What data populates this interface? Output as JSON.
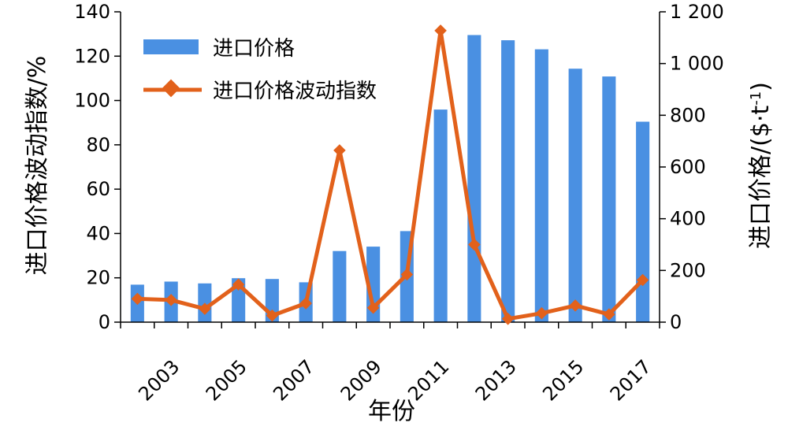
{
  "chart_data": {
    "type": "bar+line",
    "categories": [
      "2002",
      "2003",
      "2004",
      "2005",
      "2006",
      "2007",
      "2008",
      "2009",
      "2010",
      "2011",
      "2012",
      "2013",
      "2014",
      "2015",
      "2016",
      "2017"
    ],
    "x_tick_labels": [
      "2003",
      "2005",
      "2007",
      "2009",
      "2011",
      "2013",
      "2015",
      "2017"
    ],
    "series": [
      {
        "name": "进口价格",
        "kind": "bar",
        "axis": "right",
        "color": "#4A90E2",
        "values": [
          145,
          157,
          150,
          170,
          167,
          154,
          275,
          292,
          352,
          822,
          1110,
          1090,
          1055,
          980,
          950,
          775
        ]
      },
      {
        "name": "进口价格波动指数",
        "kind": "line",
        "axis": "left",
        "color": "#E2611B",
        "values": [
          10.5,
          10,
          6,
          17,
          3,
          8.5,
          77.5,
          6.5,
          21.5,
          131.5,
          35,
          1.5,
          4,
          7.5,
          3.5,
          19
        ]
      }
    ],
    "left_axis": {
      "label": "进口价格波动指数/%",
      "range": [
        0,
        140
      ],
      "ticks": [
        "0",
        "20",
        "40",
        "60",
        "80",
        "100",
        "120",
        "140"
      ]
    },
    "right_axis": {
      "label_main": "进口价格/($·t",
      "label_sup": "-1",
      "label_end": ")",
      "range": [
        0,
        1200
      ],
      "ticks": [
        "0",
        "200",
        "400",
        "600",
        "800",
        "1 000",
        "1 200"
      ]
    },
    "xlabel": "年份",
    "legend_position": "top-left",
    "grid": false
  }
}
